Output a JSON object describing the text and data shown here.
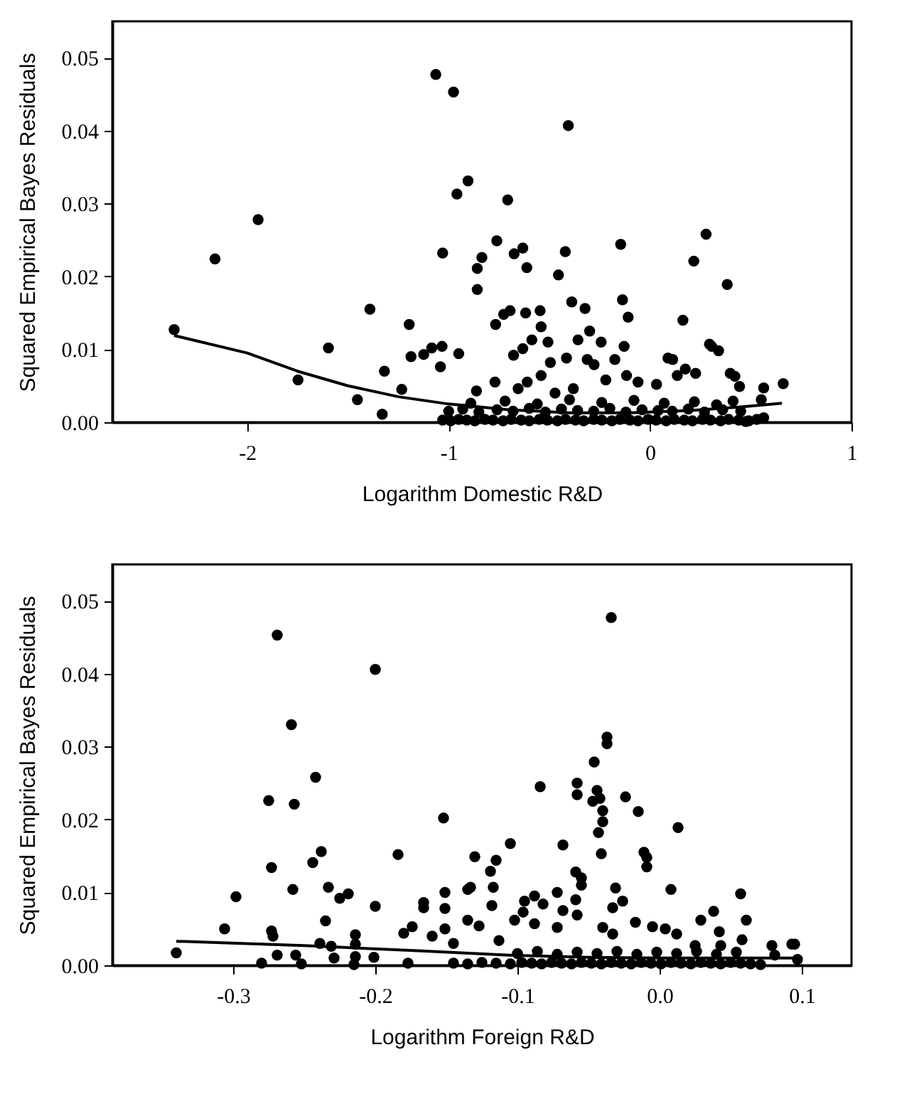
{
  "chart_data": [
    {
      "type": "scatter",
      "xlabel": "Logarithm Domestic R&D",
      "ylabel": "Squared Empirical Bayes Residuals",
      "xlim": [
        -2.67,
        1.0
      ],
      "xticks": [
        -2,
        -1,
        0,
        1
      ],
      "ylim": [
        0,
        0.055
      ],
      "yticks": [
        {
          "value": 0,
          "label": "0.00"
        },
        0.01,
        0.02,
        0.03,
        0.04,
        0.05
      ],
      "grid": false,
      "marker": "circle",
      "series": [
        {
          "color": "#000000",
          "x": [
            -2.363,
            -2.16,
            -1.946,
            -1.748,
            -1.597,
            -1.453,
            -1.391,
            -1.33,
            -1.319,
            -1.233,
            -1.196,
            -1.187,
            -1.124,
            -1.084,
            -1.033,
            -1.041,
            -1.064,
            -0.976,
            -0.904,
            -0.959,
            -1.03,
            -0.95,
            -0.858,
            -0.835,
            -0.858,
            -0.761,
            -0.707,
            -0.675,
            -0.632,
            -0.612,
            -0.767,
            -0.727,
            -0.695,
            -0.618,
            -0.546,
            -0.406,
            -0.455,
            -0.421,
            -0.389,
            -0.323,
            -0.146,
            -0.137,
            -0.109,
            0.278,
            0.217,
            0.383,
            0.163,
            0.112,
            0.175,
            0.306,
            0.34,
            0.421,
            0.444,
            0.564,
            0.661,
            0.552,
            0.564,
            0.475,
            0.412,
            -0.862,
            -0.77,
            -0.678,
            -0.632,
            -0.587,
            -0.541,
            -0.507,
            -0.495,
            -0.541,
            -0.61,
            -0.415,
            -0.358,
            -0.3,
            -0.243,
            -0.312,
            -0.278,
            -0.175,
            -0.129,
            -0.22,
            -0.117,
            -0.06,
            0.032,
            0.089,
            0.135,
            0.226,
            0.295,
            0.398,
            -0.381,
            -0.472,
            -0.655,
            -1.03,
            -0.99,
            -0.95,
            -0.91,
            -0.87,
            -0.82,
            -0.78,
            -0.73,
            -0.69,
            -0.64,
            -0.6,
            -0.55,
            -0.51,
            -0.46,
            -0.42,
            -0.37,
            -0.33,
            -0.28,
            -0.24,
            -0.19,
            -0.15,
            -0.1,
            -0.06,
            -0.01,
            0.03,
            0.08,
            0.12,
            0.17,
            0.21,
            0.26,
            0.3,
            0.35,
            0.39,
            0.44,
            0.49,
            0.53,
            -1.0,
            -0.93,
            -0.85,
            -0.76,
            -0.68,
            -0.6,
            -0.52,
            -0.44,
            -0.36,
            -0.28,
            -0.2,
            -0.12,
            -0.04,
            0.04,
            0.11,
            0.19,
            0.27,
            0.36,
            0.45,
            -0.89,
            -0.72,
            -0.56,
            -0.4,
            -0.24,
            -0.08,
            0.07,
            0.22,
            0.33
          ],
          "values": [
            0.0127,
            0.0224,
            0.0278,
            0.0058,
            0.0102,
            0.0031,
            0.0155,
            0.0011,
            0.007,
            0.0045,
            0.0134,
            0.009,
            0.0093,
            0.0102,
            0.0104,
            0.0076,
            0.0477,
            0.0453,
            0.0331,
            0.0313,
            0.0232,
            0.0094,
            0.0211,
            0.0226,
            0.0182,
            0.0249,
            0.0305,
            0.0231,
            0.0239,
            0.0212,
            0.0134,
            0.0148,
            0.0153,
            0.015,
            0.0153,
            0.0407,
            0.0202,
            0.0234,
            0.0165,
            0.0156,
            0.0244,
            0.0168,
            0.0144,
            0.0258,
            0.0221,
            0.0189,
            0.014,
            0.0086,
            0.0073,
            0.0104,
            0.0098,
            0.0063,
            0.0049,
            0.0047,
            0.0053,
            0.0031,
            0.0006,
            0.0001,
            0.0029,
            0.0043,
            0.0055,
            0.0092,
            0.0101,
            0.0113,
            0.0131,
            0.011,
            0.0082,
            0.0064,
            0.0055,
            0.0088,
            0.0113,
            0.0125,
            0.011,
            0.0086,
            0.0079,
            0.0086,
            0.0104,
            0.0058,
            0.0064,
            0.0055,
            0.0052,
            0.0088,
            0.0064,
            0.0067,
            0.0107,
            0.0067,
            0.0046,
            0.004,
            0.0046,
            0.0003,
            0.0002,
            0.0004,
            0.0003,
            0.0002,
            0.0004,
            0.0003,
            0.0002,
            0.0004,
            0.0003,
            0.0002,
            0.0004,
            0.0003,
            0.0002,
            0.0004,
            0.0003,
            0.0002,
            0.0004,
            0.0003,
            0.0002,
            0.0004,
            0.0003,
            0.0002,
            0.0004,
            0.0003,
            0.0002,
            0.0004,
            0.0003,
            0.0002,
            0.0004,
            0.0003,
            0.0002,
            0.0004,
            0.0003,
            0.0002,
            0.0004,
            0.0015,
            0.0018,
            0.0014,
            0.0017,
            0.0015,
            0.0019,
            0.0014,
            0.0018,
            0.0016,
            0.0015,
            0.0019,
            0.0014,
            0.0017,
            0.0016,
            0.0015,
            0.0018,
            0.0014,
            0.0017,
            0.0015,
            0.0026,
            0.0029,
            0.0025,
            0.0031,
            0.0027,
            0.003,
            0.0026,
            0.0028,
            0.0024
          ]
        },
        {
          "type": "line",
          "marker": "none",
          "color": "#000000",
          "x": [
            -2.363,
            -2.0,
            -1.75,
            -1.5,
            -1.25,
            -1.0,
            -0.7,
            -0.4,
            -0.1,
            0.2,
            0.45,
            0.655
          ],
          "values": [
            0.0119,
            0.0095,
            0.007,
            0.005,
            0.0035,
            0.0025,
            0.0017,
            0.0013,
            0.0013,
            0.0016,
            0.0021,
            0.0026
          ]
        }
      ]
    },
    {
      "type": "scatter",
      "xlabel": "Logarithm Foreign R&D",
      "ylabel": "Squared Empirical Bayes Residuals",
      "xlim": [
        -0.385,
        0.135
      ],
      "xticks": [
        -0.3,
        -0.2,
        -0.1,
        {
          "value": 0,
          "label": "0.0"
        },
        0.1
      ],
      "ylim": [
        0,
        0.055
      ],
      "yticks": [
        {
          "value": 0,
          "label": "0.00"
        },
        0.01,
        0.02,
        0.03,
        0.04,
        0.05
      ],
      "grid": false,
      "marker": "circle",
      "series": [
        {
          "color": "#000000",
          "x": [
            -0.34,
            -0.306,
            -0.298,
            -0.28,
            -0.269,
            -0.259,
            -0.275,
            -0.257,
            -0.242,
            -0.238,
            -0.244,
            -0.273,
            -0.258,
            -0.233,
            -0.225,
            -0.219,
            -0.235,
            -0.273,
            -0.272,
            -0.269,
            -0.256,
            -0.252,
            -0.239,
            -0.231,
            -0.229,
            -0.214,
            -0.214,
            -0.215,
            -0.214,
            -0.201,
            -0.2,
            -0.2,
            -0.184,
            -0.152,
            -0.18,
            -0.174,
            -0.177,
            -0.166,
            -0.166,
            -0.16,
            -0.151,
            -0.151,
            -0.151,
            -0.145,
            -0.135,
            -0.133,
            -0.13,
            -0.135,
            -0.127,
            -0.119,
            -0.117,
            -0.118,
            -0.115,
            -0.105,
            -0.113,
            -0.068,
            -0.084,
            -0.046,
            -0.037,
            -0.037,
            -0.034,
            -0.058,
            -0.058,
            -0.044,
            -0.047,
            -0.042,
            -0.04,
            -0.04,
            -0.043,
            -0.041,
            -0.024,
            -0.015,
            0.013,
            -0.011,
            -0.009,
            -0.009,
            0.008,
            0.057,
            -0.059,
            -0.055,
            -0.055,
            -0.031,
            -0.026,
            -0.033,
            -0.059,
            -0.072,
            -0.088,
            -0.095,
            -0.082,
            -0.102,
            -0.096,
            -0.068,
            -0.058,
            -0.088,
            -0.072,
            -0.017,
            -0.005,
            0.004,
            0.012,
            0.029,
            0.038,
            0.042,
            0.061,
            0.058,
            -0.04,
            -0.033,
            0.079,
            0.093,
            0.095,
            0.097,
            0.081,
            0.071,
            0.043,
            0.025,
            -0.145,
            -0.135,
            -0.125,
            -0.115,
            -0.105,
            -0.097,
            -0.09,
            -0.083,
            -0.076,
            -0.069,
            -0.062,
            -0.055,
            -0.048,
            -0.041,
            -0.034,
            -0.027,
            -0.02,
            -0.013,
            -0.006,
            0.001,
            0.008,
            0.015,
            0.022,
            0.029,
            0.036,
            0.043,
            0.05,
            0.057,
            0.064,
            -0.1,
            -0.086,
            -0.072,
            -0.058,
            -0.044,
            -0.03,
            -0.016,
            -0.002,
            0.012,
            0.026,
            0.04,
            0.054
          ],
          "values": [
            0.0017,
            0.005,
            0.0094,
            0.0003,
            0.0453,
            0.033,
            0.0226,
            0.0221,
            0.0258,
            0.0156,
            0.0141,
            0.0134,
            0.0104,
            0.0107,
            0.0092,
            0.0098,
            0.0061,
            0.0047,
            0.004,
            0.0014,
            0.0014,
            0.0002,
            0.003,
            0.0026,
            0.001,
            0.0042,
            0.0029,
            0.0001,
            0.0012,
            0.0011,
            0.0406,
            0.0081,
            0.0152,
            0.0202,
            0.0044,
            0.0053,
            0.0003,
            0.0086,
            0.0079,
            0.004,
            0.01,
            0.0078,
            0.005,
            0.003,
            0.0104,
            0.0107,
            0.0149,
            0.0062,
            0.0054,
            0.0129,
            0.0107,
            0.0082,
            0.0144,
            0.0167,
            0.0034,
            0.0165,
            0.0245,
            0.0279,
            0.0313,
            0.0304,
            0.0477,
            0.025,
            0.0234,
            0.024,
            0.0225,
            0.0229,
            0.0212,
            0.0197,
            0.0182,
            0.0153,
            0.0231,
            0.0211,
            0.0189,
            0.0155,
            0.0148,
            0.0135,
            0.0104,
            0.0098,
            0.0128,
            0.012,
            0.011,
            0.0106,
            0.0088,
            0.0079,
            0.009,
            0.01,
            0.0095,
            0.0088,
            0.0084,
            0.0062,
            0.0073,
            0.0075,
            0.0069,
            0.0057,
            0.0052,
            0.0059,
            0.0053,
            0.005,
            0.0043,
            0.0062,
            0.0074,
            0.0046,
            0.0062,
            0.0035,
            0.0052,
            0.0043,
            0.0027,
            0.0029,
            0.0029,
            0.0008,
            0.0014,
            0.0001,
            0.0027,
            0.0027,
            0.0003,
            0.0002,
            0.0004,
            0.0003,
            0.0002,
            0.0004,
            0.0003,
            0.0002,
            0.0004,
            0.0003,
            0.0002,
            0.0004,
            0.0003,
            0.0002,
            0.0004,
            0.0003,
            0.0002,
            0.0004,
            0.0003,
            0.0002,
            0.0004,
            0.0003,
            0.0002,
            0.0004,
            0.0003,
            0.0002,
            0.0004,
            0.0003,
            0.0002,
            0.0016,
            0.0019,
            0.0015,
            0.0018,
            0.0016,
            0.0019,
            0.0015,
            0.0018,
            0.0016,
            0.0019,
            0.0015,
            0.0018
          ]
        },
        {
          "type": "line",
          "marker": "none",
          "color": "#000000",
          "x": [
            -0.34,
            -0.25,
            -0.17,
            -0.106,
            -0.05,
            0.0,
            0.05,
            0.097
          ],
          "values": [
            0.0033,
            0.0027,
            0.002,
            0.0014,
            0.0011,
            0.001,
            0.001,
            0.001
          ]
        }
      ]
    }
  ]
}
